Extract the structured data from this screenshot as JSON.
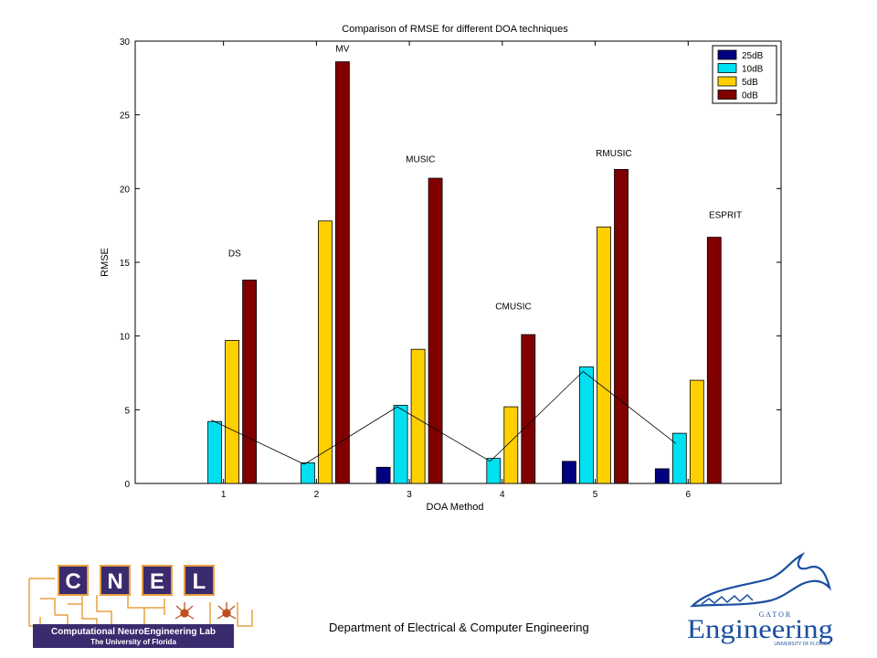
{
  "chart_data": {
    "type": "bar",
    "title": "Comparison of RMSE for different DOA techniques",
    "xlabel": "DOA Method",
    "ylabel": "RMSE",
    "categories": [
      "1",
      "2",
      "3",
      "4",
      "5",
      "6"
    ],
    "ylim": [
      0,
      30
    ],
    "yticks": [
      0,
      5,
      10,
      15,
      20,
      25,
      30
    ],
    "grid": false,
    "legend_position": "top-right",
    "series": [
      {
        "name": "25dB",
        "color": "#000080",
        "values": [
          0,
          0,
          1.1,
          0,
          1.5,
          1.0
        ]
      },
      {
        "name": "10dB",
        "color": "#00E0F0",
        "values": [
          4.2,
          1.4,
          5.3,
          1.7,
          7.9,
          3.4
        ]
      },
      {
        "name": "5dB",
        "color": "#FFD000",
        "values": [
          9.7,
          17.8,
          9.1,
          5.2,
          17.4,
          7.0
        ]
      },
      {
        "name": "0dB",
        "color": "#800000",
        "values": [
          13.8,
          28.6,
          20.7,
          10.1,
          21.3,
          16.7
        ]
      }
    ],
    "trend_line": {
      "x": [
        1,
        2,
        3,
        4,
        5,
        6
      ],
      "values": [
        4.3,
        1.3,
        5.2,
        1.5,
        7.6,
        2.7
      ]
    },
    "annotations": [
      {
        "text": "DS",
        "x": 1.12,
        "y": 15.4
      },
      {
        "text": "MV",
        "x": 2.28,
        "y": 29.3
      },
      {
        "text": "MUSIC",
        "x": 3.12,
        "y": 21.8
      },
      {
        "text": "CMUSIC",
        "x": 4.12,
        "y": 11.8
      },
      {
        "text": "RMUSIC",
        "x": 5.2,
        "y": 22.2
      },
      {
        "text": "ESPRIT",
        "x": 6.4,
        "y": 18.0
      }
    ]
  },
  "footer": {
    "department": "Department of Electrical & Computer Engineering"
  },
  "logos": {
    "cnel_letters": [
      "C",
      "N",
      "E",
      "L"
    ],
    "cnel_line1": "Computational NeuroEngineering Lab",
    "cnel_line2": "The University of Florida",
    "gator_top": "G A T O R",
    "gator_main": "Engineering",
    "gator_sub": "UNIVERSITY OF FLORIDA"
  },
  "colors": {
    "cnel_purple": "#3a2a6e",
    "cnel_orange": "#e8a040",
    "gator_blue": "#1a4fa0"
  }
}
